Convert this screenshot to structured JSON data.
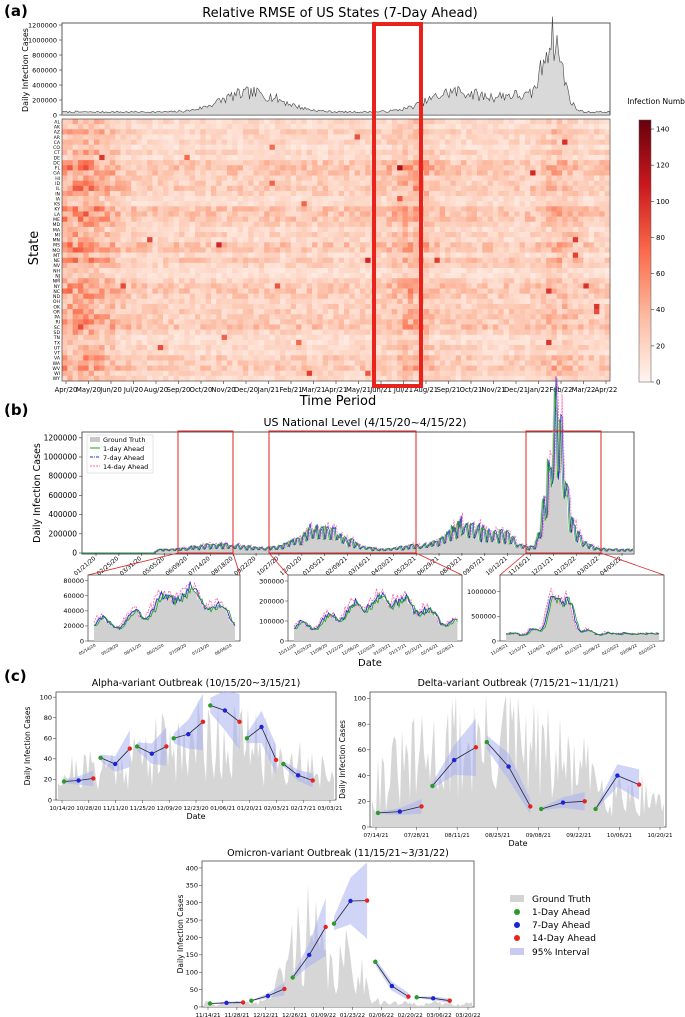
{
  "panels": {
    "a": "(a)",
    "b": "(b)",
    "c": "(c)"
  },
  "panel_a": {
    "title": "Relative RMSE of US States (7-Day Ahead)",
    "top_ylabel": "Daily Infection Cases",
    "top_yticks": [
      "0",
      "200000",
      "400000",
      "600000",
      "800000",
      "1000000",
      "1200000"
    ],
    "heat_ylabel": "State",
    "xlabel": "Time Period",
    "states": [
      "AL",
      "AK",
      "AZ",
      "AR",
      "CA",
      "CO",
      "CT",
      "DE",
      "DC",
      "FL",
      "GA",
      "HI",
      "ID",
      "IL",
      "IN",
      "IA",
      "KS",
      "KY",
      "LA",
      "ME",
      "MD",
      "MA",
      "MI",
      "MN",
      "MS",
      "MO",
      "MT",
      "NE",
      "NV",
      "NH",
      "NJ",
      "NM",
      "NY",
      "NC",
      "ND",
      "OH",
      "OK",
      "OR",
      "PA",
      "RI",
      "SC",
      "SD",
      "TN",
      "TX",
      "UT",
      "VT",
      "VA",
      "WA",
      "WV",
      "WI",
      "WY"
    ],
    "xticks": [
      "Apr/20",
      "May/20",
      "Jun/20",
      "Jul/20",
      "Aug/20",
      "Sep/20",
      "Oct/20",
      "Nov/20",
      "Dec/20",
      "Jan/21",
      "Feb/21",
      "Mar/21",
      "Apr/21",
      "May/21",
      "Jun/21",
      "Jul/21",
      "Aug/21",
      "Sep/21",
      "Oct/21",
      "Nov/21",
      "Dec/21",
      "Jan/22",
      "Feb/22",
      "Mar/22",
      "Apr/22"
    ],
    "colorbar_title": "Infection Number",
    "colorbar_ticks": [
      "0",
      "20",
      "40",
      "60",
      "80",
      "100",
      "120",
      "140"
    ]
  },
  "panel_b": {
    "title": "US National Level (4/15/20~4/15/22)",
    "ylabel": "Daily Infection Cases",
    "yticks": [
      "0",
      "200000",
      "400000",
      "600000",
      "800000",
      "1000000",
      "1200000"
    ],
    "xticks": [
      "01/21/20",
      "02/25/20",
      "03/31/20",
      "05/05/20",
      "06/09/20",
      "07/14/20",
      "08/18/20",
      "09/22/20",
      "10/27/20",
      "12/01/20",
      "01/05/21",
      "02/09/21",
      "03/16/21",
      "04/20/21",
      "05/25/21",
      "06/29/21",
      "08/03/21",
      "09/07/21",
      "10/12/21",
      "11/16/21",
      "12/21/21",
      "01/25/22",
      "03/01/22",
      "04/05/22"
    ],
    "legend": [
      "Ground Truth",
      "1-day Ahead",
      "7-day Ahead",
      "14-day Ahead"
    ],
    "xlabel": "Date",
    "sub1_yticks": [
      "0",
      "20000",
      "40000",
      "60000",
      "80000"
    ],
    "sub1_xticks": [
      "05/14/20",
      "05/28/20",
      "06/11/20",
      "06/25/20",
      "07/09/20",
      "07/23/20",
      "08/06/20"
    ],
    "sub2_yticks": [
      "0",
      "100000",
      "200000",
      "300000"
    ],
    "sub2_xticks": [
      "10/11/20",
      "10/25/20",
      "11/08/20",
      "11/22/20",
      "12/06/20",
      "12/20/20",
      "01/03/21",
      "01/17/21",
      "01/31/21",
      "02/14/21",
      "02/28/21"
    ],
    "sub3_yticks": [
      "0",
      "500000",
      "1000000"
    ],
    "sub3_xticks": [
      "11/28/21",
      "12/12/21",
      "12/26/21",
      "01/09/22",
      "01/23/22",
      "02/06/22",
      "02/20/22",
      "03/06/22",
      "03/20/22"
    ]
  },
  "panel_c": {
    "ylabel": "Daily Infection Cases",
    "xlabel": "Date",
    "legend": [
      "Ground Truth",
      "1-Day Ahead",
      "7-Day Ahead",
      "14-Day Ahead",
      "95% Interval"
    ]
  },
  "chart_data": [
    {
      "type": "heatmap",
      "title": "Relative RMSE of US States (7-Day Ahead)",
      "xlabel": "Time Period",
      "ylabel": "State",
      "colorbar": {
        "title": "Infection Number",
        "range": [
          0,
          145
        ]
      },
      "highlight": {
        "from": "Jun/21",
        "to": "Jul/21"
      },
      "top_curve": {
        "ylabel": "Daily Infection Cases",
        "ylim": [
          0,
          1200000
        ],
        "peak": {
          "x": "Jan/22",
          "y": 1180000
        }
      }
    },
    {
      "type": "line",
      "title": "US National Level (4/15/20~4/15/22)",
      "ylabel": "Daily Infection Cases",
      "ylim": [
        0,
        1250000
      ],
      "series": [
        "Ground Truth",
        "1-day Ahead",
        "7-day Ahead",
        "14-day Ahead"
      ],
      "peaks": [
        {
          "x": "01/05/21",
          "y": 250000
        },
        {
          "x": "09/07/21",
          "y": 300000
        },
        {
          "x": "01/10/22",
          "y": 1150000
        }
      ],
      "windows": [
        [
          "05/05/20",
          "08/18/20"
        ],
        [
          "10/20/20",
          "03/01/21"
        ],
        [
          "11/26/21",
          "04/01/22"
        ]
      ]
    },
    {
      "type": "line",
      "title": "Alpha-variant Outbreak (10/15/20~3/15/21)",
      "ylim": [
        0,
        105
      ],
      "xticks": [
        "10/14/20",
        "10/28/20",
        "11/11/20",
        "11/25/20",
        "12/09/20",
        "12/23/20",
        "01/06/21",
        "01/20/21",
        "02/03/21",
        "02/17/21",
        "03/03/21"
      ],
      "yticks": [
        0,
        20,
        40,
        60,
        80,
        100
      ],
      "segments": [
        [
          18,
          19,
          21
        ],
        [
          41,
          35,
          50
        ],
        [
          52,
          45,
          52
        ],
        [
          60,
          64,
          76
        ],
        [
          92,
          87,
          76
        ],
        [
          60,
          71,
          39
        ],
        [
          35,
          24,
          19
        ]
      ]
    },
    {
      "type": "line",
      "title": "Delta-variant Outbreak (7/15/21~11/1/21)",
      "ylim": [
        0,
        105
      ],
      "xticks": [
        "07/14/21",
        "07/28/21",
        "08/11/21",
        "08/25/21",
        "09/08/21",
        "09/22/21",
        "10/06/21",
        "10/20/21"
      ],
      "yticks": [
        0,
        20,
        40,
        60,
        80,
        100
      ],
      "segments": [
        [
          11,
          12,
          16
        ],
        [
          32,
          52,
          62
        ],
        [
          66,
          47,
          16
        ],
        [
          14,
          19,
          20
        ],
        [
          14,
          40,
          33
        ]
      ]
    },
    {
      "type": "line",
      "title": "Omicron-variant Outbreak (11/15/21~3/31/22)",
      "ylim": [
        0,
        420
      ],
      "xticks": [
        "11/14/21",
        "11/28/21",
        "12/12/21",
        "12/26/21",
        "01/09/22",
        "01/23/22",
        "02/06/22",
        "02/20/22",
        "03/06/22",
        "03/20/22"
      ],
      "yticks": [
        0,
        50,
        100,
        150,
        200,
        250,
        300,
        350,
        400
      ],
      "segments": [
        [
          10,
          12,
          13
        ],
        [
          18,
          32,
          52
        ],
        [
          85,
          150,
          230
        ],
        [
          240,
          305,
          306
        ],
        [
          130,
          60,
          30
        ],
        [
          28,
          25,
          18
        ]
      ]
    }
  ]
}
